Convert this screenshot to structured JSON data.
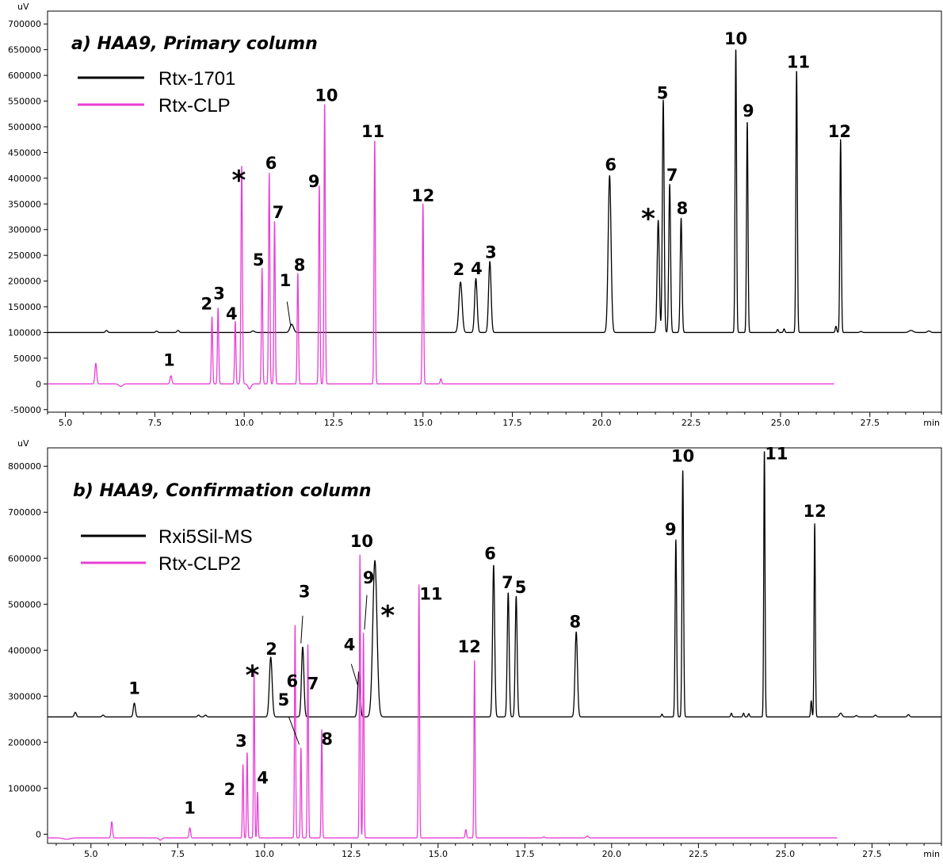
{
  "chart_data": [
    {
      "type": "line",
      "title": "a) HAA9, Primary column",
      "ylabel": "uV",
      "xlabel": "min",
      "xlim": [
        4.5,
        29.5
      ],
      "ylim": [
        -55000,
        725000
      ],
      "xticks": [
        5.0,
        7.5,
        10.0,
        12.5,
        15.0,
        17.5,
        20.0,
        22.5,
        25.0,
        27.5
      ],
      "xtick_labels": [
        "5.0",
        "7.5",
        "10.0",
        "12.5",
        "15.0",
        "17.5",
        "20.0",
        "22.5",
        "25.0",
        "27.5"
      ],
      "yticks": [
        -50000,
        0,
        50000,
        100000,
        150000,
        200000,
        250000,
        300000,
        350000,
        400000,
        450000,
        500000,
        550000,
        600000,
        650000,
        700000
      ],
      "ytick_labels": [
        "-50000",
        "0",
        "50000",
        "100000",
        "150000",
        "200000",
        "250000",
        "300000",
        "350000",
        "400000",
        "450000",
        "500000",
        "550000",
        "600000",
        "650000",
        "700000"
      ],
      "grid": false,
      "legend_position": "top-left",
      "series": [
        {
          "name": "Rtx-1701",
          "color": "#000000",
          "baseline": 100000,
          "x_start": 4.5,
          "x_end": 29.5,
          "peaks": [
            {
              "t": 6.15,
              "h": 4000,
              "w": 0.03
            },
            {
              "t": 7.55,
              "h": 2500,
              "w": 0.03
            },
            {
              "t": 8.15,
              "h": 4000,
              "w": 0.03
            },
            {
              "t": 10.25,
              "h": 3000,
              "w": 0.04
            },
            {
              "t": 11.33,
              "h": 16000,
              "w": 0.05
            },
            {
              "t": 16.05,
              "h": 98000,
              "w": 0.045
            },
            {
              "t": 16.48,
              "h": 105000,
              "w": 0.035
            },
            {
              "t": 16.87,
              "h": 138000,
              "w": 0.035
            },
            {
              "t": 20.22,
              "h": 305000,
              "w": 0.04
            },
            {
              "t": 21.58,
              "h": 218000,
              "w": 0.03
            },
            {
              "t": 21.72,
              "h": 452000,
              "w": 0.025
            },
            {
              "t": 21.9,
              "h": 288000,
              "w": 0.025
            },
            {
              "t": 22.22,
              "h": 222000,
              "w": 0.025
            },
            {
              "t": 23.75,
              "h": 552000,
              "w": 0.02
            },
            {
              "t": 24.07,
              "h": 410000,
              "w": 0.02
            },
            {
              "t": 24.92,
              "h": 6000,
              "w": 0.02
            },
            {
              "t": 25.1,
              "h": 7000,
              "w": 0.02
            },
            {
              "t": 25.45,
              "h": 510000,
              "w": 0.02
            },
            {
              "t": 26.55,
              "h": 12000,
              "w": 0.02
            },
            {
              "t": 26.68,
              "h": 375000,
              "w": 0.02
            },
            {
              "t": 27.25,
              "h": 2000,
              "w": 0.03
            },
            {
              "t": 28.65,
              "h": 4000,
              "w": 0.06
            },
            {
              "t": 29.15,
              "h": 3000,
              "w": 0.04
            }
          ]
        },
        {
          "name": "Rtx-CLP",
          "color": "#e83fd6",
          "baseline": 0,
          "x_start": 4.5,
          "x_end": 26.5,
          "peaks": [
            {
              "t": 5.85,
              "h": 40000,
              "w": 0.025
            },
            {
              "t": 6.55,
              "h": -5000,
              "w": 0.05
            },
            {
              "t": 7.95,
              "h": 16000,
              "w": 0.025
            },
            {
              "t": 9.1,
              "h": 130000,
              "w": 0.018
            },
            {
              "t": 9.27,
              "h": 148000,
              "w": 0.018
            },
            {
              "t": 9.75,
              "h": 122000,
              "w": 0.018
            },
            {
              "t": 9.93,
              "h": 425000,
              "w": 0.02
            },
            {
              "t": 10.15,
              "h": -10000,
              "w": 0.04
            },
            {
              "t": 10.5,
              "h": 225000,
              "w": 0.018
            },
            {
              "t": 10.7,
              "h": 410000,
              "w": 0.018
            },
            {
              "t": 10.85,
              "h": 317000,
              "w": 0.018
            },
            {
              "t": 11.5,
              "h": 215000,
              "w": 0.018
            },
            {
              "t": 12.1,
              "h": 385000,
              "w": 0.018
            },
            {
              "t": 12.25,
              "h": 546000,
              "w": 0.018
            },
            {
              "t": 13.65,
              "h": 475000,
              "w": 0.018
            },
            {
              "t": 15.0,
              "h": 350000,
              "w": 0.018
            },
            {
              "t": 15.5,
              "h": 10000,
              "w": 0.02
            }
          ]
        }
      ],
      "annotations": [
        {
          "text": "1",
          "x": 7.9,
          "y": 35000
        },
        {
          "text": "2",
          "x": 8.95,
          "y": 145000
        },
        {
          "text": "3",
          "x": 9.3,
          "y": 165000
        },
        {
          "text": "4",
          "x": 9.65,
          "y": 125000
        },
        {
          "text": "*",
          "x": 9.85,
          "y": 400000
        },
        {
          "text": "5",
          "x": 10.4,
          "y": 230000
        },
        {
          "text": "6",
          "x": 10.75,
          "y": 418000
        },
        {
          "text": "7",
          "x": 10.95,
          "y": 323000
        },
        {
          "text": "1",
          "x": 11.15,
          "y": 190000
        },
        {
          "text": "8",
          "x": 11.55,
          "y": 220000
        },
        {
          "text": "9",
          "x": 11.95,
          "y": 383000
        },
        {
          "text": "10",
          "x": 12.3,
          "y": 550000
        },
        {
          "text": "11",
          "x": 13.6,
          "y": 480000
        },
        {
          "text": "12",
          "x": 15.0,
          "y": 355000
        },
        {
          "text": "2",
          "x": 16.0,
          "y": 212000
        },
        {
          "text": "4",
          "x": 16.5,
          "y": 213000
        },
        {
          "text": "3",
          "x": 16.9,
          "y": 245000
        },
        {
          "text": "6",
          "x": 20.25,
          "y": 415000
        },
        {
          "text": "*",
          "x": 21.3,
          "y": 325000
        },
        {
          "text": "5",
          "x": 21.7,
          "y": 555000
        },
        {
          "text": "7",
          "x": 21.97,
          "y": 395000
        },
        {
          "text": "8",
          "x": 22.25,
          "y": 330000
        },
        {
          "text": "10",
          "x": 23.75,
          "y": 660000
        },
        {
          "text": "9",
          "x": 24.1,
          "y": 520000
        },
        {
          "text": "11",
          "x": 25.5,
          "y": 615000
        },
        {
          "text": "12",
          "x": 26.65,
          "y": 480000
        }
      ],
      "leader_lines": [
        {
          "from": [
            11.2,
            160000
          ],
          "to": [
            11.3,
            112000
          ]
        }
      ]
    },
    {
      "type": "line",
      "title": "b) HAA9, Confirmation column",
      "ylabel": "uV",
      "xlabel": "min",
      "xlim": [
        3.75,
        29.5
      ],
      "ylim": [
        -20000,
        840000
      ],
      "xticks": [
        5.0,
        7.5,
        10.0,
        12.5,
        15.0,
        17.5,
        20.0,
        22.5,
        25.0,
        27.5
      ],
      "xtick_labels": [
        "5.0",
        "7.5",
        "10.0",
        "12.5",
        "15.0",
        "17.5",
        "20.0",
        "22.5",
        "25.0",
        "27.5"
      ],
      "yticks": [
        0,
        100000,
        200000,
        300000,
        400000,
        500000,
        600000,
        700000,
        800000
      ],
      "ytick_labels": [
        "0",
        "100000",
        "200000",
        "300000",
        "400000",
        "500000",
        "600000",
        "700000",
        "800000"
      ],
      "grid": false,
      "legend_position": "top-left",
      "series": [
        {
          "name": "Rxi5Sil-MS",
          "color": "#000000",
          "baseline": 255000,
          "x_start": 3.75,
          "x_end": 29.5,
          "peaks": [
            {
              "t": 4.55,
              "h": 10000,
              "w": 0.03
            },
            {
              "t": 5.35,
              "h": 4000,
              "w": 0.03
            },
            {
              "t": 6.25,
              "h": 30000,
              "w": 0.03
            },
            {
              "t": 8.1,
              "h": 4000,
              "w": 0.03
            },
            {
              "t": 8.3,
              "h": 4000,
              "w": 0.03
            },
            {
              "t": 10.18,
              "h": 130000,
              "w": 0.04
            },
            {
              "t": 11.1,
              "h": 152000,
              "w": 0.035
            },
            {
              "t": 12.72,
              "h": 98000,
              "w": 0.035
            },
            {
              "t": 13.18,
              "h": 340000,
              "w": 0.06
            },
            {
              "t": 16.6,
              "h": 330000,
              "w": 0.03
            },
            {
              "t": 17.02,
              "h": 270000,
              "w": 0.028
            },
            {
              "t": 17.25,
              "h": 262000,
              "w": 0.028
            },
            {
              "t": 18.98,
              "h": 185000,
              "w": 0.035
            },
            {
              "t": 21.45,
              "h": 6000,
              "w": 0.02
            },
            {
              "t": 21.85,
              "h": 385000,
              "w": 0.022
            },
            {
              "t": 22.05,
              "h": 535000,
              "w": 0.022
            },
            {
              "t": 23.45,
              "h": 8000,
              "w": 0.02
            },
            {
              "t": 23.8,
              "h": 8000,
              "w": 0.02
            },
            {
              "t": 23.95,
              "h": 7000,
              "w": 0.02
            },
            {
              "t": 24.4,
              "h": 580000,
              "w": 0.018
            },
            {
              "t": 25.75,
              "h": 35000,
              "w": 0.018
            },
            {
              "t": 25.85,
              "h": 420000,
              "w": 0.018
            },
            {
              "t": 26.6,
              "h": 8000,
              "w": 0.04
            },
            {
              "t": 27.05,
              "h": 3000,
              "w": 0.03
            },
            {
              "t": 27.6,
              "h": 4000,
              "w": 0.03
            },
            {
              "t": 28.55,
              "h": 5000,
              "w": 0.03
            }
          ]
        },
        {
          "name": "Rtx-CLP2",
          "color": "#e83fd6",
          "baseline": -8000,
          "x_start": 3.75,
          "x_end": 26.5,
          "peaks": [
            {
              "t": 4.3,
              "h": -3000,
              "w": 0.1
            },
            {
              "t": 5.6,
              "h": 35000,
              "w": 0.022
            },
            {
              "t": 7.0,
              "h": -5000,
              "w": 0.04
            },
            {
              "t": 7.85,
              "h": 22000,
              "w": 0.022
            },
            {
              "t": 9.38,
              "h": 160000,
              "w": 0.016
            },
            {
              "t": 9.5,
              "h": 186000,
              "w": 0.016
            },
            {
              "t": 9.7,
              "h": 363000,
              "w": 0.016
            },
            {
              "t": 9.8,
              "h": 100000,
              "w": 0.016
            },
            {
              "t": 10.88,
              "h": 465000,
              "w": 0.016
            },
            {
              "t": 11.05,
              "h": 195000,
              "w": 0.016
            },
            {
              "t": 11.25,
              "h": 420000,
              "w": 0.016
            },
            {
              "t": 11.65,
              "h": 235000,
              "w": 0.016
            },
            {
              "t": 12.75,
              "h": 615000,
              "w": 0.016
            },
            {
              "t": 12.85,
              "h": 445000,
              "w": 0.016
            },
            {
              "t": 14.45,
              "h": 550000,
              "w": 0.016
            },
            {
              "t": 15.8,
              "h": 18000,
              "w": 0.02
            },
            {
              "t": 16.05,
              "h": 385000,
              "w": 0.016
            },
            {
              "t": 18.05,
              "h": 2000,
              "w": 0.03
            },
            {
              "t": 19.3,
              "h": 4000,
              "w": 0.03
            }
          ]
        }
      ],
      "annotations": [
        {
          "text": "1",
          "x": 6.25,
          "y": 305000
        },
        {
          "text": "1",
          "x": 7.85,
          "y": 45000
        },
        {
          "text": "2",
          "x": 9.0,
          "y": 85000
        },
        {
          "text": "3",
          "x": 9.33,
          "y": 190000
        },
        {
          "text": "4",
          "x": 9.95,
          "y": 110000
        },
        {
          "text": "*",
          "x": 9.65,
          "y": 350000
        },
        {
          "text": "2",
          "x": 10.2,
          "y": 390000
        },
        {
          "text": "5",
          "x": 10.55,
          "y": 280000
        },
        {
          "text": "6",
          "x": 10.8,
          "y": 320000
        },
        {
          "text": "3",
          "x": 11.15,
          "y": 515000
        },
        {
          "text": "7",
          "x": 11.4,
          "y": 315000
        },
        {
          "text": "8",
          "x": 11.8,
          "y": 195000
        },
        {
          "text": "4",
          "x": 12.45,
          "y": 400000
        },
        {
          "text": "10",
          "x": 12.8,
          "y": 625000
        },
        {
          "text": "9",
          "x": 13.0,
          "y": 545000
        },
        {
          "text": "*",
          "x": 13.55,
          "y": 480000
        },
        {
          "text": "11",
          "x": 14.8,
          "y": 510000
        },
        {
          "text": "12",
          "x": 15.9,
          "y": 395000
        },
        {
          "text": "6",
          "x": 16.5,
          "y": 598000
        },
        {
          "text": "7",
          "x": 17.0,
          "y": 535000
        },
        {
          "text": "5",
          "x": 17.38,
          "y": 525000
        },
        {
          "text": "8",
          "x": 18.95,
          "y": 450000
        },
        {
          "text": "9",
          "x": 21.7,
          "y": 650000
        },
        {
          "text": "10",
          "x": 22.05,
          "y": 810000
        },
        {
          "text": "11",
          "x": 24.75,
          "y": 815000
        },
        {
          "text": "12",
          "x": 25.85,
          "y": 690000
        }
      ],
      "leader_lines": [
        {
          "from": [
            11.1,
            475000
          ],
          "to": [
            11.05,
            415000
          ]
        },
        {
          "from": [
            10.7,
            255000
          ],
          "to": [
            11.0,
            195000
          ]
        },
        {
          "from": [
            12.5,
            370000
          ],
          "to": [
            12.68,
            325000
          ]
        },
        {
          "from": [
            12.95,
            520000
          ],
          "to": [
            12.88,
            445000
          ]
        }
      ]
    }
  ]
}
